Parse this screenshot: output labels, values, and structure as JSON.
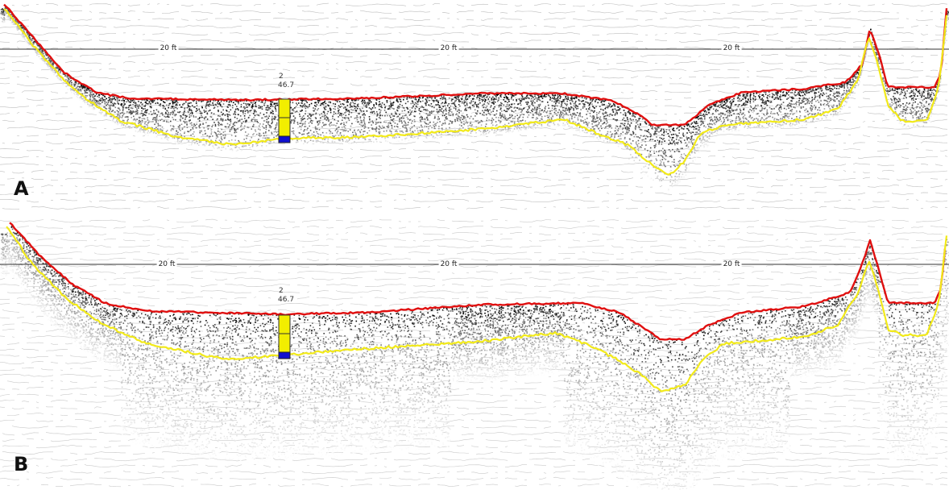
{
  "panels": [
    {
      "id": "A",
      "letter": "A",
      "depth_labels": [
        "20 ft",
        "20 ft",
        "20 ft"
      ],
      "marker": {
        "line1": "2",
        "line2": "46.7"
      }
    },
    {
      "id": "B",
      "letter": "B",
      "depth_labels": [
        "20 ft",
        "20 ft",
        "20 ft"
      ],
      "marker": {
        "line1": "2",
        "line2": "46.7"
      }
    }
  ],
  "colors": {
    "surface_line": "#e01010",
    "bottom_line": "#f2ea1a",
    "marker_fill": "#f2ee00",
    "marker_base": "#1010d0",
    "depth_ref_line": "#333333",
    "echo_noise": "#000000"
  }
}
